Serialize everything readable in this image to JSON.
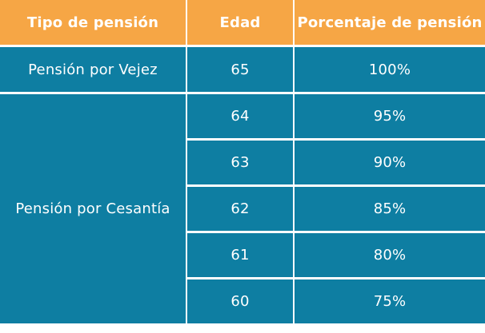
{
  "table": {
    "headers": [
      "Tipo de pensión",
      "Edad",
      "Porcentaje de pensión"
    ],
    "groups": [
      {
        "type": "Pensión por Vejez",
        "rows": [
          {
            "age": "65",
            "percent": "100%"
          }
        ]
      },
      {
        "type": "Pensión por Cesantía",
        "rows": [
          {
            "age": "64",
            "percent": "95%"
          },
          {
            "age": "63",
            "percent": "90%"
          },
          {
            "age": "62",
            "percent": "85%"
          },
          {
            "age": "61",
            "percent": "80%"
          },
          {
            "age": "60",
            "percent": "75%"
          }
        ]
      }
    ]
  },
  "colors": {
    "header_bg": "#f6a645",
    "body_bg": "#0e7ea2",
    "text": "#ffffff"
  }
}
